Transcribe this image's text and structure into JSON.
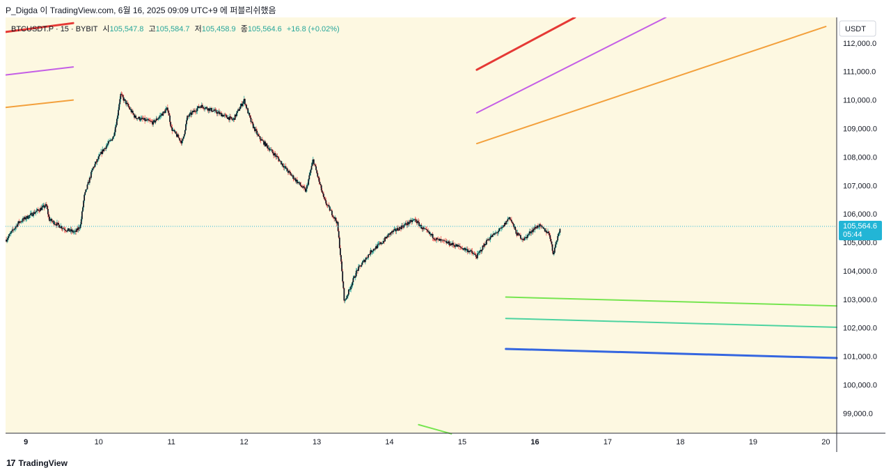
{
  "header": {
    "text": "P_Digda 이 TradingView.com, 6월 16, 2025 09:09 UTC+9 에 퍼블리쉬했음"
  },
  "legend": {
    "symbol": "BTCUSDT.P · 15 · BYBIT",
    "open_label": "시",
    "open": "105,547.8",
    "high_label": "고",
    "high": "105,584.7",
    "low_label": "저",
    "low": "105,458.9",
    "close_label": "종",
    "close": "105,564.6",
    "change": "+16.8 (+0.02%)"
  },
  "footer": {
    "brand": "TradingView",
    "logo": "17"
  },
  "colors": {
    "background": "#fdf8e1",
    "up": "#26a69a",
    "down": "#ef5350",
    "candle": "#131722",
    "red_line": "#e53935",
    "violet_line": "#c45ee6",
    "orange_line": "#f3a03c",
    "green_line": "#76e550",
    "teal_line": "#4cd3a0",
    "blue_line": "#3466e0",
    "price_tag": "#22b5d6"
  },
  "chart_data": {
    "type": "candlestick",
    "currency_label": "USDT",
    "ylim": [
      98300,
      112900
    ],
    "y_ticks": [
      99000,
      100000,
      101000,
      102000,
      103000,
      104000,
      105000,
      106000,
      107000,
      108000,
      109000,
      110000,
      111000,
      112000
    ],
    "y_tick_labels": [
      "99,000.0",
      "100,000.0",
      "101,000.0",
      "102,000.0",
      "103,000.0",
      "104,000.0",
      "105,000.0",
      "106,000.0",
      "107,000.0",
      "108,000.0",
      "109,000.0",
      "110,000.0",
      "111,000.0",
      "112,000.0"
    ],
    "xlim": [
      8.72,
      20.15
    ],
    "x_ticks": [
      9,
      10,
      11,
      12,
      13,
      14,
      15,
      16,
      17,
      18,
      19,
      20
    ],
    "x_tick_labels": [
      "9",
      "10",
      "11",
      "12",
      "13",
      "14",
      "15",
      "16",
      "17",
      "18",
      "19",
      "20"
    ],
    "x_bold_ticks": [
      "9",
      "16"
    ],
    "last_price_label": "105,564.6",
    "last_price": 105564.6,
    "countdown": "05:44",
    "price_path": [
      [
        8.73,
        105100
      ],
      [
        8.9,
        105700
      ],
      [
        9.15,
        106100
      ],
      [
        9.28,
        106300
      ],
      [
        9.32,
        105800
      ],
      [
        9.55,
        105450
      ],
      [
        9.68,
        105350
      ],
      [
        9.75,
        105600
      ],
      [
        9.8,
        106600
      ],
      [
        9.92,
        107600
      ],
      [
        10.05,
        108200
      ],
      [
        10.2,
        108700
      ],
      [
        10.25,
        109300
      ],
      [
        10.3,
        110200
      ],
      [
        10.5,
        109400
      ],
      [
        10.75,
        109200
      ],
      [
        10.95,
        109700
      ],
      [
        11.0,
        109000
      ],
      [
        11.15,
        108500
      ],
      [
        11.22,
        109400
      ],
      [
        11.4,
        109800
      ],
      [
        11.6,
        109600
      ],
      [
        11.85,
        109300
      ],
      [
        12.0,
        110000
      ],
      [
        12.1,
        109200
      ],
      [
        12.2,
        108700
      ],
      [
        12.45,
        108000
      ],
      [
        12.6,
        107500
      ],
      [
        12.85,
        106800
      ],
      [
        12.95,
        107900
      ],
      [
        13.1,
        106500
      ],
      [
        13.28,
        105700
      ],
      [
        13.32,
        104700
      ],
      [
        13.38,
        102900
      ],
      [
        13.55,
        104000
      ],
      [
        13.75,
        104700
      ],
      [
        13.9,
        105000
      ],
      [
        14.0,
        105300
      ],
      [
        14.2,
        105600
      ],
      [
        14.35,
        105800
      ],
      [
        14.45,
        105500
      ],
      [
        14.65,
        105100
      ],
      [
        14.9,
        104900
      ],
      [
        15.1,
        104700
      ],
      [
        15.2,
        104500
      ],
      [
        15.35,
        105100
      ],
      [
        15.55,
        105500
      ],
      [
        15.65,
        105900
      ],
      [
        15.75,
        105300
      ],
      [
        15.85,
        105100
      ],
      [
        15.95,
        105400
      ],
      [
        16.05,
        105600
      ],
      [
        16.2,
        105300
      ],
      [
        16.25,
        104600
      ],
      [
        16.35,
        105560
      ]
    ],
    "drawings": [
      {
        "color": "red_line",
        "width": 3,
        "segments": [
          [
            [
              8.72,
              112390
            ],
            [
              9.65,
              112700
            ]
          ],
          [
            [
              15.2,
              111060
            ],
            [
              16.55,
              112900
            ]
          ]
        ]
      },
      {
        "color": "violet_line",
        "width": 2,
        "segments": [
          [
            [
              8.72,
              110880
            ],
            [
              9.65,
              111160
            ]
          ],
          [
            [
              15.2,
              109550
            ],
            [
              17.8,
              112900
            ]
          ]
        ]
      },
      {
        "color": "orange_line",
        "width": 2,
        "segments": [
          [
            [
              8.72,
              109740
            ],
            [
              9.65,
              110000
            ]
          ],
          [
            [
              15.2,
              108470
            ],
            [
              20.0,
              112580
            ]
          ]
        ]
      },
      {
        "color": "green_line",
        "width": 2,
        "segments": [
          [
            [
              15.6,
              103080
            ],
            [
              20.15,
              102770
            ]
          ],
          [
            [
              14.4,
              98600
            ],
            [
              14.85,
              98280
            ]
          ]
        ]
      },
      {
        "color": "teal_line",
        "width": 2,
        "segments": [
          [
            [
              15.6,
              102330
            ],
            [
              20.15,
              102020
            ]
          ]
        ]
      },
      {
        "color": "blue_line",
        "width": 3,
        "segments": [
          [
            [
              15.6,
              101260
            ],
            [
              20.15,
              100940
            ]
          ]
        ]
      }
    ]
  }
}
